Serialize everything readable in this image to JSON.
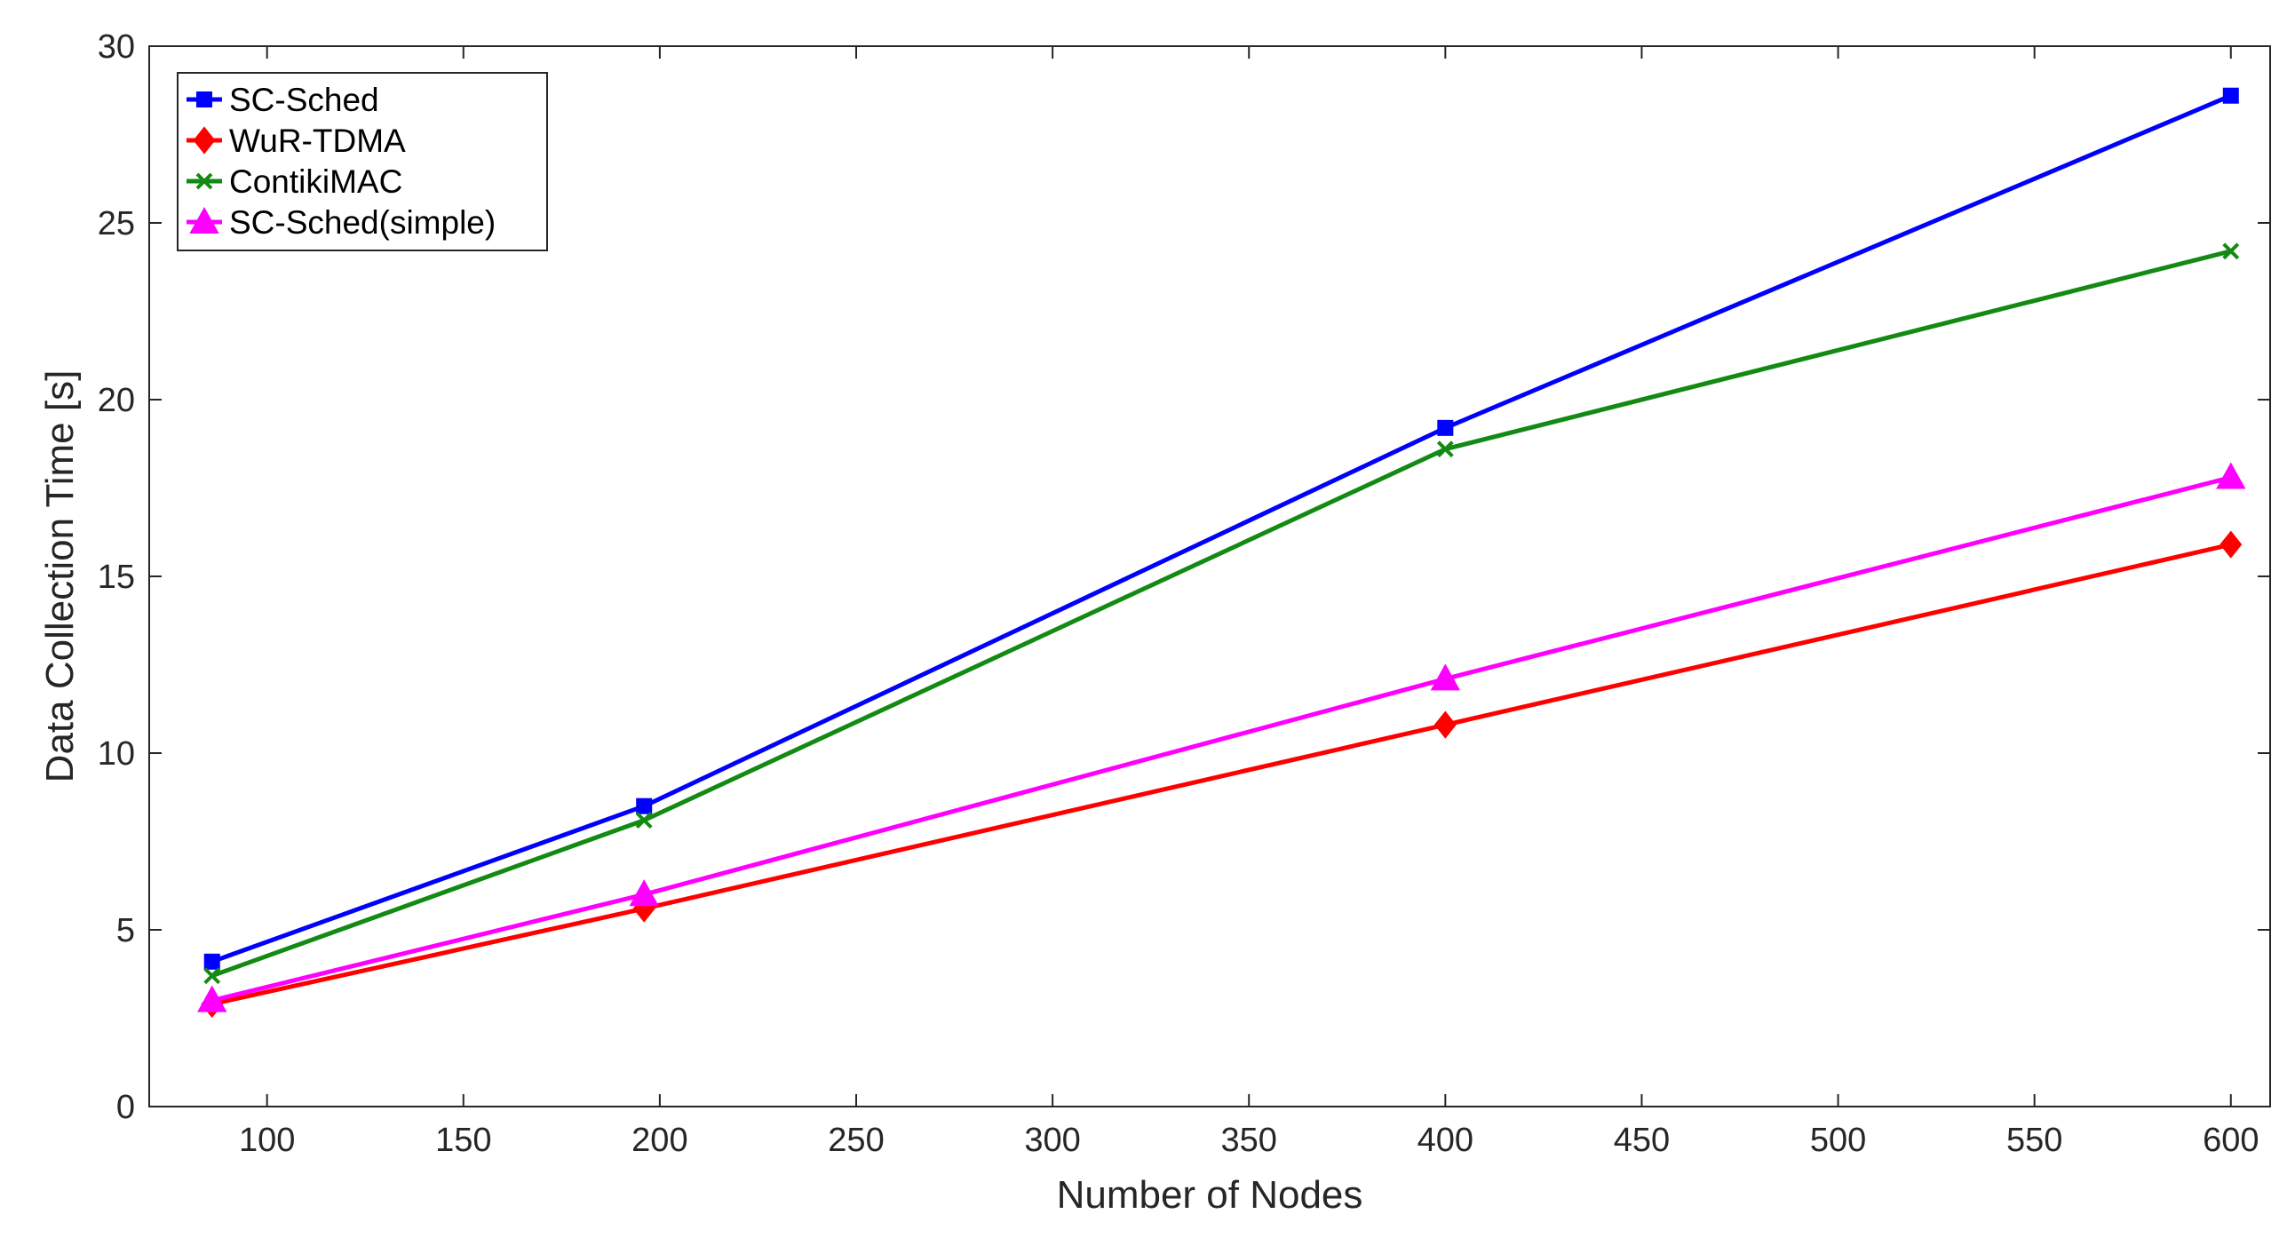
{
  "chart_data": {
    "type": "line",
    "title": "",
    "xlabel": "Number of Nodes",
    "ylabel": "Data Collection Time [s]",
    "xlim": [
      70,
      610
    ],
    "ylim": [
      0,
      30
    ],
    "xticks": [
      "100",
      "150",
      "200",
      "250",
      "300",
      "350",
      "400",
      "450",
      "500",
      "550",
      "600"
    ],
    "yticks": [
      "0",
      "5",
      "10",
      "15",
      "20",
      "25",
      "30"
    ],
    "grid": false,
    "box": true,
    "legend_position": "top-left",
    "series": [
      {
        "name": "SC-Sched",
        "color": "#0000ff",
        "marker": "square",
        "x": [
          86,
          196,
          400,
          600
        ],
        "y": [
          4.1,
          8.5,
          19.2,
          28.6
        ]
      },
      {
        "name": "WuR-TDMA",
        "color": "#ff0000",
        "marker": "diamond",
        "x": [
          86,
          196,
          400,
          600
        ],
        "y": [
          2.9,
          5.6,
          10.8,
          15.9
        ]
      },
      {
        "name": "ContikiMAC",
        "color": "#138a13",
        "marker": "x",
        "x": [
          86,
          196,
          400,
          600
        ],
        "y": [
          3.7,
          8.1,
          18.6,
          24.2
        ]
      },
      {
        "name": "SC-Sched(simple)",
        "color": "#ff00ff",
        "marker": "triangle",
        "x": [
          86,
          196,
          400,
          600
        ],
        "y": [
          3.0,
          6.0,
          12.1,
          17.8
        ]
      }
    ]
  }
}
